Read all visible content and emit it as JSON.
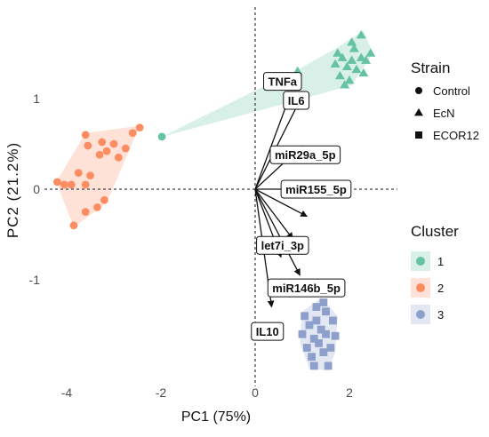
{
  "chart_data": {
    "type": "scatter",
    "title": "",
    "xlabel": "PC1 (75%)",
    "ylabel": "PC2 (21.2%)",
    "xlim": [
      -5,
      3.6
    ],
    "ylim": [
      -2.0,
      1.8
    ],
    "x_ticks": [
      -4,
      -2,
      0,
      2
    ],
    "y_ticks": [
      -1,
      0,
      1
    ],
    "grid": false,
    "reference_lines": {
      "x": 0,
      "y": 0,
      "style": "dashed"
    },
    "colors": {
      "1": "#66c2a5",
      "2": "#fc8d62",
      "3": "#8da0cb"
    },
    "clusters": [
      {
        "name": "1",
        "points": [
          {
            "x": -1.98,
            "y": 0.58,
            "shape": "circle"
          },
          {
            "x": 0.9,
            "y": 1.3,
            "shape": "triangle"
          },
          {
            "x": 0.9,
            "y": 0.98,
            "shape": "triangle"
          },
          {
            "x": 1.7,
            "y": 1.38,
            "shape": "triangle"
          },
          {
            "x": 1.85,
            "y": 1.45,
            "shape": "triangle"
          },
          {
            "x": 1.95,
            "y": 1.35,
            "shape": "triangle"
          },
          {
            "x": 2.05,
            "y": 1.42,
            "shape": "triangle"
          },
          {
            "x": 2.15,
            "y": 1.32,
            "shape": "triangle"
          },
          {
            "x": 1.8,
            "y": 1.25,
            "shape": "triangle"
          },
          {
            "x": 2.0,
            "y": 1.2,
            "shape": "triangle"
          },
          {
            "x": 2.25,
            "y": 1.45,
            "shape": "triangle"
          },
          {
            "x": 2.35,
            "y": 1.42,
            "shape": "triangle"
          },
          {
            "x": 2.25,
            "y": 1.7,
            "shape": "triangle"
          },
          {
            "x": 2.05,
            "y": 1.62,
            "shape": "triangle"
          },
          {
            "x": 2.45,
            "y": 1.5,
            "shape": "triangle"
          },
          {
            "x": 1.75,
            "y": 1.5,
            "shape": "triangle"
          },
          {
            "x": 1.9,
            "y": 1.15,
            "shape": "triangle"
          },
          {
            "x": 2.3,
            "y": 1.28,
            "shape": "triangle"
          },
          {
            "x": 2.1,
            "y": 1.55,
            "shape": "triangle"
          }
        ],
        "hull": [
          [
            -1.98,
            0.58
          ],
          [
            0.9,
            0.98
          ],
          [
            2.05,
            1.15
          ],
          [
            2.5,
            1.5
          ],
          [
            2.3,
            1.75
          ],
          [
            1.7,
            1.55
          ],
          [
            0.9,
            1.32
          ]
        ]
      },
      {
        "name": "2",
        "points": [
          {
            "x": -2.45,
            "y": 0.68,
            "shape": "circle"
          },
          {
            "x": -2.6,
            "y": 0.62,
            "shape": "circle"
          },
          {
            "x": -2.75,
            "y": 0.45,
            "shape": "circle"
          },
          {
            "x": -2.9,
            "y": 0.35,
            "shape": "circle"
          },
          {
            "x": -3.0,
            "y": 0.5,
            "shape": "circle"
          },
          {
            "x": -3.15,
            "y": 0.42,
            "shape": "circle"
          },
          {
            "x": -3.25,
            "y": 0.52,
            "shape": "circle"
          },
          {
            "x": -3.3,
            "y": 0.38,
            "shape": "circle"
          },
          {
            "x": -3.55,
            "y": 0.48,
            "shape": "circle"
          },
          {
            "x": -3.6,
            "y": 0.6,
            "shape": "circle"
          },
          {
            "x": -3.5,
            "y": 0.15,
            "shape": "circle"
          },
          {
            "x": -3.6,
            "y": 0.05,
            "shape": "circle"
          },
          {
            "x": -3.75,
            "y": 0.18,
            "shape": "circle"
          },
          {
            "x": -3.9,
            "y": 0.05,
            "shape": "circle"
          },
          {
            "x": -4.05,
            "y": 0.05,
            "shape": "circle"
          },
          {
            "x": -4.2,
            "y": 0.08,
            "shape": "circle"
          },
          {
            "x": -3.2,
            "y": -0.12,
            "shape": "circle"
          },
          {
            "x": -3.35,
            "y": -0.2,
            "shape": "circle"
          },
          {
            "x": -3.6,
            "y": -0.25,
            "shape": "circle"
          },
          {
            "x": -3.85,
            "y": -0.4,
            "shape": "circle"
          }
        ],
        "hull": [
          [
            -2.45,
            0.7
          ],
          [
            -3.15,
            -0.15
          ],
          [
            -3.85,
            -0.42
          ],
          [
            -4.22,
            0.08
          ],
          [
            -3.6,
            0.62
          ]
        ]
      },
      {
        "name": "3",
        "points": [
          {
            "x": 1.0,
            "y": -1.6,
            "shape": "square"
          },
          {
            "x": 1.1,
            "y": -1.75,
            "shape": "square"
          },
          {
            "x": 1.15,
            "y": -1.5,
            "shape": "square"
          },
          {
            "x": 1.2,
            "y": -1.85,
            "shape": "square"
          },
          {
            "x": 1.25,
            "y": -1.65,
            "shape": "square"
          },
          {
            "x": 1.3,
            "y": -1.45,
            "shape": "square"
          },
          {
            "x": 1.35,
            "y": -1.7,
            "shape": "square"
          },
          {
            "x": 1.4,
            "y": -1.55,
            "shape": "square"
          },
          {
            "x": 1.45,
            "y": -1.8,
            "shape": "square"
          },
          {
            "x": 1.5,
            "y": -1.35,
            "shape": "square"
          },
          {
            "x": 1.5,
            "y": -1.6,
            "shape": "square"
          },
          {
            "x": 1.55,
            "y": -1.95,
            "shape": "square"
          },
          {
            "x": 1.6,
            "y": -1.75,
            "shape": "square"
          },
          {
            "x": 1.65,
            "y": -1.45,
            "shape": "square"
          },
          {
            "x": 1.7,
            "y": -1.62,
            "shape": "square"
          },
          {
            "x": 1.3,
            "y": -1.3,
            "shape": "square"
          },
          {
            "x": 1.45,
            "y": -1.25,
            "shape": "square"
          },
          {
            "x": 1.05,
            "y": -1.4,
            "shape": "square"
          },
          {
            "x": 1.25,
            "y": -1.95,
            "shape": "square"
          }
        ],
        "hull": [
          [
            1.0,
            -1.35
          ],
          [
            1.4,
            -1.2
          ],
          [
            1.75,
            -1.4
          ],
          [
            1.7,
            -1.8
          ],
          [
            1.55,
            -2.0
          ],
          [
            1.15,
            -1.98
          ],
          [
            0.95,
            -1.7
          ]
        ]
      }
    ],
    "loadings": [
      {
        "label": "TNFa",
        "x": 0.75,
        "y": 1.05
      },
      {
        "label": "IL6",
        "x": 0.92,
        "y": 0.95
      },
      {
        "label": "miR29a_5p",
        "x": 1.0,
        "y": 0.48
      },
      {
        "label": "miR155_5p",
        "x": 1.15,
        "y": 0.0
      },
      {
        "label": "let7i_3p",
        "x": 0.8,
        "y": -0.55
      },
      {
        "label": "miR146b_5p",
        "x": 0.95,
        "y": -0.95
      },
      {
        "label": "IL10",
        "x": 0.35,
        "y": -1.3
      },
      {
        "label": "",
        "x": 1.1,
        "y": -0.3
      },
      {
        "label": "",
        "x": 0.55,
        "y": -0.75
      }
    ],
    "label_positions": [
      {
        "label": "TNFa",
        "x": 0.18,
        "y": 1.19
      },
      {
        "label": "IL6",
        "x": 0.6,
        "y": 0.98
      },
      {
        "label": "miR29a_5p",
        "x": 0.32,
        "y": 0.38
      },
      {
        "label": "miR155_5p",
        "x": 0.55,
        "y": 0.0
      },
      {
        "label": "let7i_3p",
        "x": 0.03,
        "y": -0.62
      },
      {
        "label": "miR146b_5p",
        "x": 0.27,
        "y": -1.09
      },
      {
        "label": "IL10",
        "x": -0.08,
        "y": -1.57
      }
    ],
    "legend": {
      "strain_title": "Strain",
      "strain_items": [
        {
          "label": "Control",
          "shape": "circle"
        },
        {
          "label": "EcN",
          "shape": "triangle"
        },
        {
          "label": "ECOR12",
          "shape": "square"
        }
      ],
      "cluster_title": "Cluster",
      "cluster_items": [
        {
          "label": "1",
          "color": "#66c2a5"
        },
        {
          "label": "2",
          "color": "#fc8d62"
        },
        {
          "label": "3",
          "color": "#8da0cb"
        }
      ],
      "placement": "right"
    }
  }
}
